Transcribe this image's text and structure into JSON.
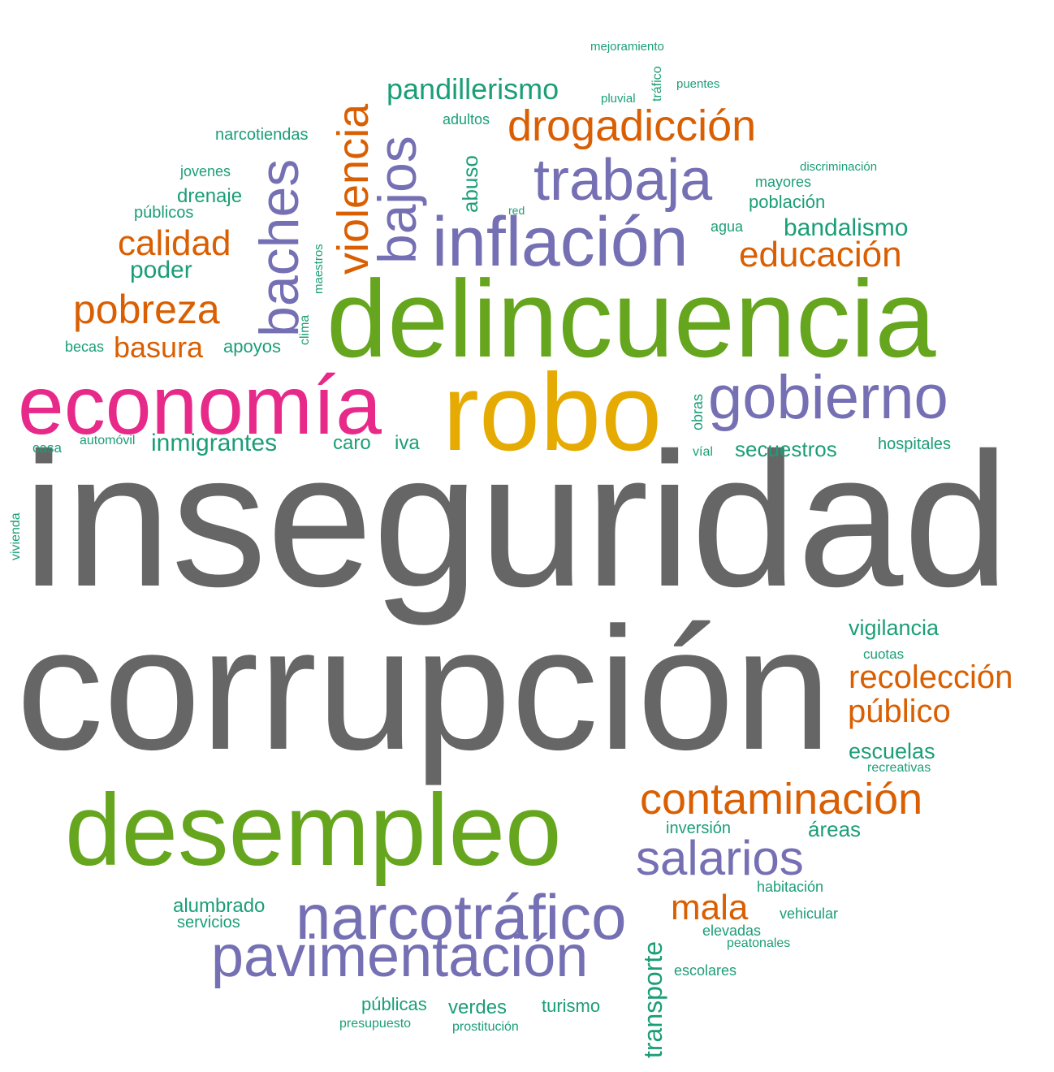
{
  "words": {
    "inseguridad": "inseguridad",
    "corrupcion": "corrupción",
    "delincuencia": "delincuencia",
    "robo": "robo",
    "economia": "economía",
    "desempleo": "desempleo",
    "inflacion": "inflación",
    "gobierno": "gobierno",
    "trabaja": "trabaja",
    "narcotrafico": "narcotráfico",
    "pavimentacion": "pavimentación",
    "salarios": "salarios",
    "baches": "baches",
    "bajos": "bajos",
    "violencia": "violencia",
    "contaminacion": "contaminación",
    "drogadiccion": "drogadicción",
    "pobreza": "pobreza",
    "calidad": "calidad",
    "educacion": "educación",
    "pandillerismo": "pandillerismo",
    "recoleccion": "recolección",
    "publico": "público",
    "mala": "mala",
    "basura": "basura",
    "bandalismo": "bandalismo",
    "inmigrantes": "inmigrantes",
    "poder": "poder",
    "vigilancia": "vigilancia",
    "escuelas": "escuelas",
    "secuestros": "secuestros",
    "transporte": "transporte",
    "alumbrado": "alumbrado",
    "servicios": "servicios",
    "areas": "áreas",
    "verdes": "verdes",
    "turismo": "turismo",
    "publicas": "públicas",
    "drenaje": "drenaje",
    "apoyos": "apoyos",
    "caro": "caro",
    "iva": "iva",
    "abuso": "abuso",
    "poblacion": "población",
    "hospitales": "hospitales",
    "inversion": "inversión",
    "publicos": "públicos",
    "narcotiendas": "narcotiendas",
    "jovenes": "jovenes",
    "becas": "becas",
    "casa": "casa",
    "automovil": "automóvil",
    "adultos": "adultos",
    "mayores": "mayores",
    "agua": "agua",
    "obras": "obras",
    "vial": "víal",
    "cuotas": "cuotas",
    "recreativas": "recreativas",
    "habitacion": "habitación",
    "vehicular": "vehicular",
    "elevadas": "elevadas",
    "peatonales": "peatonales",
    "escolares": "escolares",
    "presupuesto": "presupuesto",
    "prostitucion": "prostitución",
    "mejoramiento": "mejoramiento",
    "trafico": "tráfico",
    "puentes": "puentes",
    "pluvial": "pluvial",
    "discriminacion": "discriminación",
    "red": "red",
    "maestros": "maestros",
    "clima": "clima",
    "vivienda": "vivienda"
  },
  "colors": {
    "gray": "#666666",
    "green": "#66A61E",
    "purple": "#7570B3",
    "orange": "#D95F02",
    "pink": "#E7298A",
    "gold": "#E6AB02",
    "teal": "#1B9E77"
  }
}
